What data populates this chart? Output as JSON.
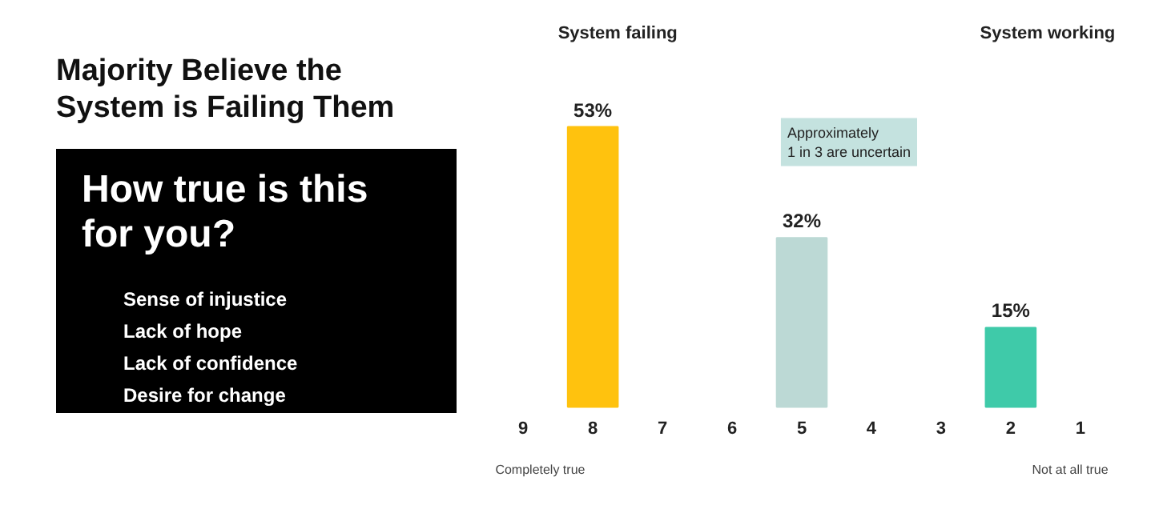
{
  "chart_data": {
    "type": "bar",
    "title": "Majority Believe the System is Failing Them",
    "subtitle": "How true is this for you?",
    "categories": [
      "9",
      "8",
      "7",
      "6",
      "5",
      "4",
      "3",
      "2",
      "1"
    ],
    "values": [
      null,
      53,
      null,
      null,
      32,
      null,
      null,
      15,
      null
    ],
    "colors": [
      "#ffc20e",
      "#ffc20e",
      "#ffc20e",
      "#ffc20e",
      "#bcd9d5",
      "#3fcaa9",
      "#3fcaa9",
      "#3fcaa9",
      "#3fcaa9"
    ],
    "value_labels": [
      null,
      "53%",
      null,
      null,
      "32%",
      null,
      null,
      "15%",
      null
    ],
    "annotations": [
      "Sense of injustice",
      "Lack of hope",
      "Lack of confidence",
      "Desire for change",
      "System failing",
      "System working",
      "Completely true",
      "Not at all true",
      "Approximately\n1 in 3 are uncertain"
    ]
  }
}
